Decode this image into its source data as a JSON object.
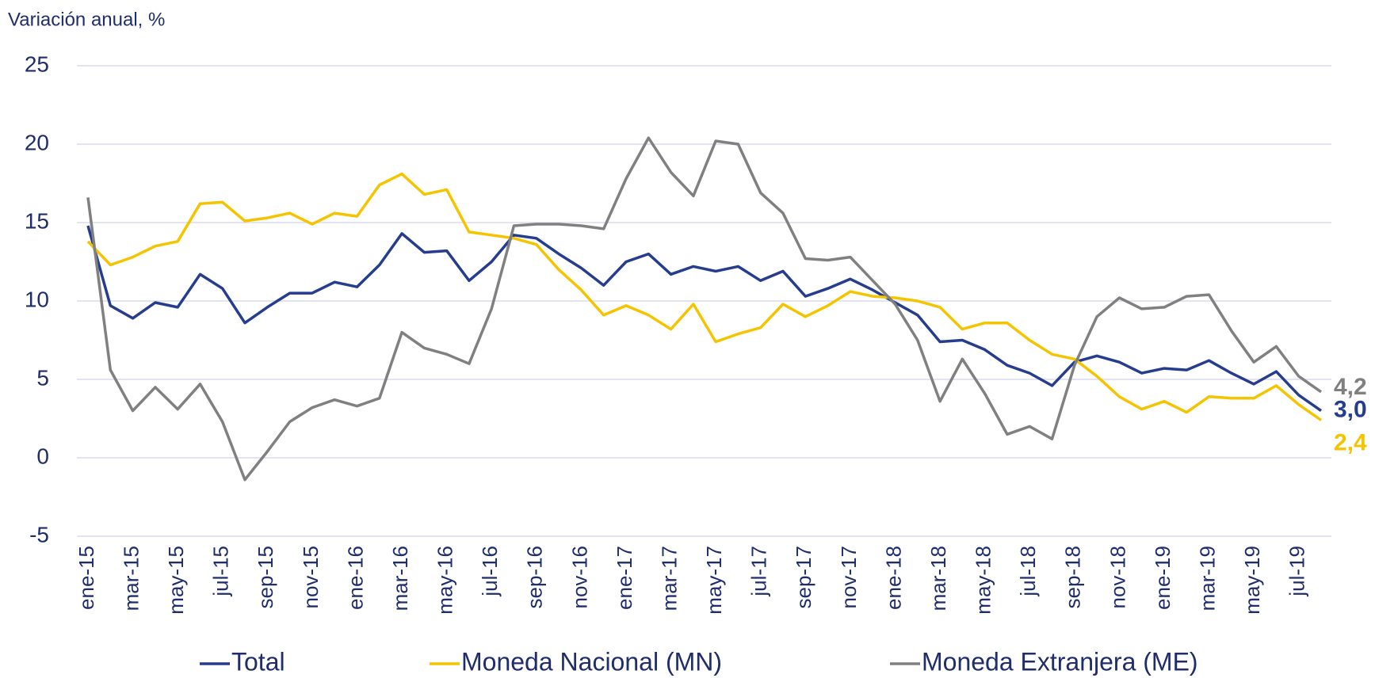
{
  "chart_data": {
    "type": "line",
    "y_axis_label": "Variación anual, %",
    "categories": [
      "ene-15",
      null,
      "mar-15",
      null,
      "may-15",
      null,
      "jul-15",
      null,
      "sep-15",
      null,
      "nov-15",
      null,
      "ene-16",
      null,
      "mar-16",
      null,
      "may-16",
      null,
      "jul-16",
      null,
      "sep-16",
      null,
      "nov-16",
      null,
      "ene-17",
      null,
      "mar-17",
      null,
      "may-17",
      null,
      "jul-17",
      null,
      "sep-17",
      null,
      "nov-17",
      null,
      "ene-18",
      null,
      "mar-18",
      null,
      "may-18",
      null,
      "jul-18",
      null,
      "sep-18",
      null,
      "nov-18",
      null,
      "ene-19",
      null,
      "mar-19",
      null,
      "may-19",
      null,
      "jul-19",
      null
    ],
    "series": [
      {
        "name": "Total",
        "color": "#263d8f",
        "values": [
          14.8,
          9.7,
          8.9,
          9.9,
          9.6,
          11.7,
          10.8,
          8.6,
          9.6,
          10.5,
          10.5,
          11.2,
          10.9,
          12.3,
          14.3,
          13.1,
          13.2,
          11.3,
          12.5,
          14.2,
          14.0,
          13.0,
          12.1,
          11.0,
          12.5,
          13.0,
          11.7,
          12.2,
          11.9,
          12.2,
          11.3,
          11.9,
          10.3,
          10.8,
          11.4,
          10.7,
          9.9,
          9.1,
          7.4,
          7.5,
          6.9,
          5.9,
          5.4,
          4.6,
          6.1,
          6.5,
          6.1,
          5.4,
          5.7,
          5.6,
          6.2,
          5.4,
          4.7,
          5.5,
          4.0,
          3.0
        ],
        "value_labels": [
          null,
          null,
          null,
          null,
          null,
          null,
          null,
          null,
          null,
          null,
          null,
          null,
          null,
          null,
          null,
          null,
          null,
          null,
          null,
          null,
          null,
          null,
          null,
          null,
          null,
          null,
          null,
          null,
          null,
          null,
          null,
          null,
          null,
          null,
          null,
          null,
          null,
          null,
          null,
          null,
          null,
          null,
          null,
          null,
          null,
          null,
          null,
          null,
          null,
          null,
          null,
          null,
          null,
          null,
          null,
          "3,0"
        ]
      },
      {
        "name": "Moneda Nacional (MN)",
        "color": "#f5c400",
        "values": [
          13.8,
          12.3,
          12.8,
          13.5,
          13.8,
          16.2,
          16.3,
          15.1,
          15.3,
          15.6,
          14.9,
          15.6,
          15.4,
          17.4,
          18.1,
          16.8,
          17.1,
          14.4,
          14.2,
          14.0,
          13.6,
          12.0,
          10.7,
          9.1,
          9.7,
          9.1,
          8.2,
          9.8,
          7.4,
          7.9,
          8.3,
          9.8,
          9.0,
          9.7,
          10.6,
          10.3,
          10.2,
          10.0,
          9.6,
          8.2,
          8.6,
          8.6,
          7.5,
          6.6,
          6.3,
          5.2,
          3.9,
          3.1,
          3.6,
          2.9,
          3.9,
          3.8,
          3.8,
          4.6,
          3.4,
          2.4
        ],
        "value_labels": [
          null,
          null,
          null,
          null,
          null,
          null,
          null,
          null,
          null,
          null,
          null,
          null,
          null,
          null,
          null,
          null,
          null,
          null,
          null,
          null,
          null,
          null,
          null,
          null,
          null,
          null,
          null,
          null,
          null,
          null,
          null,
          null,
          null,
          null,
          null,
          null,
          null,
          null,
          null,
          null,
          null,
          null,
          null,
          null,
          null,
          null,
          null,
          null,
          null,
          null,
          null,
          null,
          null,
          null,
          null,
          "2,4"
        ]
      },
      {
        "name": "Moneda Extranjera (ME)",
        "color": "#808080",
        "values": [
          16.6,
          5.6,
          3.0,
          4.5,
          3.1,
          4.7,
          2.3,
          -1.4,
          0.4,
          2.3,
          3.2,
          3.7,
          3.3,
          3.8,
          8.0,
          7.0,
          6.6,
          6.0,
          9.5,
          14.8,
          14.9,
          14.9,
          14.8,
          14.6,
          17.8,
          20.4,
          18.2,
          16.7,
          20.2,
          20.0,
          16.9,
          15.6,
          12.7,
          12.6,
          12.8,
          11.3,
          9.8,
          7.5,
          3.6,
          6.3,
          4.1,
          1.5,
          2.0,
          1.2,
          5.9,
          9.0,
          10.2,
          9.5,
          9.6,
          10.3,
          10.4,
          8.1,
          6.1,
          7.1,
          5.2,
          4.2
        ],
        "value_labels": [
          null,
          null,
          null,
          null,
          null,
          null,
          null,
          null,
          null,
          null,
          null,
          null,
          null,
          null,
          null,
          null,
          null,
          null,
          null,
          null,
          null,
          null,
          null,
          null,
          null,
          null,
          null,
          null,
          null,
          null,
          null,
          null,
          null,
          null,
          null,
          null,
          null,
          null,
          null,
          null,
          null,
          null,
          null,
          null,
          null,
          null,
          null,
          null,
          null,
          null,
          null,
          null,
          null,
          null,
          null,
          "4,2"
        ]
      }
    ],
    "ylim": [
      -5,
      25
    ],
    "yticks": [
      -5,
      0,
      5,
      10,
      15,
      20,
      25
    ],
    "grid": true,
    "legend": "bottom"
  }
}
